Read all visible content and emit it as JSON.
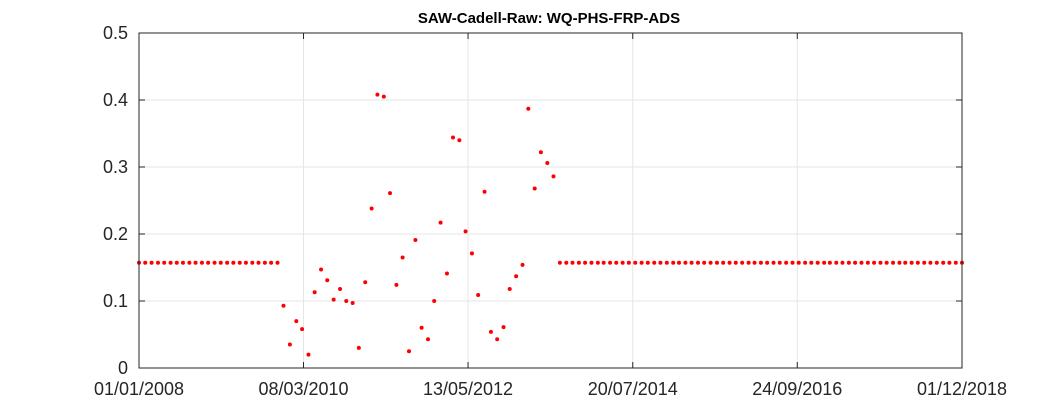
{
  "chart_data": {
    "type": "scatter",
    "title": "SAW-Cadell-Raw: WQ-PHS-FRP-ADS",
    "xlabel": "",
    "ylabel": "",
    "x_axis_type": "date",
    "xlim": [
      "2008-01-01",
      "2018-12-01"
    ],
    "ylim": [
      0,
      0.5
    ],
    "x_ticks": [
      "2008-01-01",
      "2010-03-08",
      "2012-05-13",
      "2014-07-20",
      "2016-09-24",
      "2018-12-01"
    ],
    "x_tick_labels": [
      "01/01/2008",
      "08/03/2010",
      "13/05/2012",
      "20/07/2014",
      "24/09/2016",
      "01/12/2018"
    ],
    "y_ticks": [
      0,
      0.1,
      0.2,
      0.3,
      0.4,
      0.5
    ],
    "y_tick_labels": [
      "0",
      "0.1",
      "0.2",
      "0.3",
      "0.4",
      "0.5"
    ],
    "grid": true,
    "legend": "none",
    "marker_color": "#ff0000",
    "series": [
      {
        "points": [
          {
            "x": "2008-01-01",
            "y": 0.157
          },
          {
            "x": "2008-01-31",
            "y": 0.157
          },
          {
            "x": "2008-03-02",
            "y": 0.157
          },
          {
            "x": "2008-04-02",
            "y": 0.157
          },
          {
            "x": "2008-05-02",
            "y": 0.157
          },
          {
            "x": "2008-06-02",
            "y": 0.157
          },
          {
            "x": "2008-07-02",
            "y": 0.157
          },
          {
            "x": "2008-08-01",
            "y": 0.157
          },
          {
            "x": "2008-09-01",
            "y": 0.157
          },
          {
            "x": "2008-10-01",
            "y": 0.157
          },
          {
            "x": "2008-11-01",
            "y": 0.157
          },
          {
            "x": "2008-12-01",
            "y": 0.157
          },
          {
            "x": "2009-01-01",
            "y": 0.157
          },
          {
            "x": "2009-01-31",
            "y": 0.157
          },
          {
            "x": "2009-03-03",
            "y": 0.157
          },
          {
            "x": "2009-04-02",
            "y": 0.157
          },
          {
            "x": "2009-05-03",
            "y": 0.157
          },
          {
            "x": "2009-06-02",
            "y": 0.157
          },
          {
            "x": "2009-07-03",
            "y": 0.157
          },
          {
            "x": "2009-08-02",
            "y": 0.157
          },
          {
            "x": "2009-09-02",
            "y": 0.157
          },
          {
            "x": "2009-10-02",
            "y": 0.157
          },
          {
            "x": "2009-11-02",
            "y": 0.157
          },
          {
            "x": "2009-12-01",
            "y": 0.093
          },
          {
            "x": "2010-01-01",
            "y": 0.035
          },
          {
            "x": "2010-02-01",
            "y": 0.07
          },
          {
            "x": "2010-03-01",
            "y": 0.058
          },
          {
            "x": "2010-04-01",
            "y": 0.02
          },
          {
            "x": "2010-05-01",
            "y": 0.113
          },
          {
            "x": "2010-06-01",
            "y": 0.147
          },
          {
            "x": "2010-07-01",
            "y": 0.131
          },
          {
            "x": "2010-08-01",
            "y": 0.102
          },
          {
            "x": "2010-09-01",
            "y": 0.118
          },
          {
            "x": "2010-10-01",
            "y": 0.1
          },
          {
            "x": "2010-11-01",
            "y": 0.097
          },
          {
            "x": "2010-12-01",
            "y": 0.03
          },
          {
            "x": "2011-01-01",
            "y": 0.128
          },
          {
            "x": "2011-02-01",
            "y": 0.238
          },
          {
            "x": "2011-03-01",
            "y": 0.408
          },
          {
            "x": "2011-04-01",
            "y": 0.405
          },
          {
            "x": "2011-05-01",
            "y": 0.261
          },
          {
            "x": "2011-06-01",
            "y": 0.124
          },
          {
            "x": "2011-07-01",
            "y": 0.165
          },
          {
            "x": "2011-08-01",
            "y": 0.025
          },
          {
            "x": "2011-09-01",
            "y": 0.191
          },
          {
            "x": "2011-10-01",
            "y": 0.06
          },
          {
            "x": "2011-11-01",
            "y": 0.043
          },
          {
            "x": "2011-12-01",
            "y": 0.1
          },
          {
            "x": "2012-01-01",
            "y": 0.217
          },
          {
            "x": "2012-02-01",
            "y": 0.141
          },
          {
            "x": "2012-03-01",
            "y": 0.344
          },
          {
            "x": "2012-04-01",
            "y": 0.34
          },
          {
            "x": "2012-05-01",
            "y": 0.204
          },
          {
            "x": "2012-06-01",
            "y": 0.171
          },
          {
            "x": "2012-07-01",
            "y": 0.109
          },
          {
            "x": "2012-08-01",
            "y": 0.263
          },
          {
            "x": "2012-09-01",
            "y": 0.054
          },
          {
            "x": "2012-10-01",
            "y": 0.043
          },
          {
            "x": "2012-11-01",
            "y": 0.061
          },
          {
            "x": "2012-12-01",
            "y": 0.118
          },
          {
            "x": "2013-01-01",
            "y": 0.137
          },
          {
            "x": "2013-02-01",
            "y": 0.154
          },
          {
            "x": "2013-03-01",
            "y": 0.387
          },
          {
            "x": "2013-04-01",
            "y": 0.268
          },
          {
            "x": "2013-05-01",
            "y": 0.322
          },
          {
            "x": "2013-06-01",
            "y": 0.306
          },
          {
            "x": "2013-07-01",
            "y": 0.286
          },
          {
            "x": "2013-08-01",
            "y": 0.157
          },
          {
            "x": "2013-09-01",
            "y": 0.157
          },
          {
            "x": "2013-10-01",
            "y": 0.157
          },
          {
            "x": "2013-11-01",
            "y": 0.157
          },
          {
            "x": "2013-12-01",
            "y": 0.157
          },
          {
            "x": "2014-01-01",
            "y": 0.157
          },
          {
            "x": "2014-02-01",
            "y": 0.157
          },
          {
            "x": "2014-03-01",
            "y": 0.157
          },
          {
            "x": "2014-04-01",
            "y": 0.157
          },
          {
            "x": "2014-05-01",
            "y": 0.157
          },
          {
            "x": "2014-06-01",
            "y": 0.157
          },
          {
            "x": "2014-07-01",
            "y": 0.157
          },
          {
            "x": "2014-08-01",
            "y": 0.157
          },
          {
            "x": "2014-09-01",
            "y": 0.157
          },
          {
            "x": "2014-10-01",
            "y": 0.157
          },
          {
            "x": "2014-11-01",
            "y": 0.157
          },
          {
            "x": "2014-12-01",
            "y": 0.157
          },
          {
            "x": "2015-01-01",
            "y": 0.157
          },
          {
            "x": "2015-02-01",
            "y": 0.157
          },
          {
            "x": "2015-03-01",
            "y": 0.157
          },
          {
            "x": "2015-04-01",
            "y": 0.157
          },
          {
            "x": "2015-05-01",
            "y": 0.157
          },
          {
            "x": "2015-06-01",
            "y": 0.157
          },
          {
            "x": "2015-07-01",
            "y": 0.157
          },
          {
            "x": "2015-08-01",
            "y": 0.157
          },
          {
            "x": "2015-09-01",
            "y": 0.157
          },
          {
            "x": "2015-10-01",
            "y": 0.157
          },
          {
            "x": "2015-11-01",
            "y": 0.157
          },
          {
            "x": "2015-12-01",
            "y": 0.157
          },
          {
            "x": "2016-01-01",
            "y": 0.157
          },
          {
            "x": "2016-02-01",
            "y": 0.157
          },
          {
            "x": "2016-03-01",
            "y": 0.157
          },
          {
            "x": "2016-04-01",
            "y": 0.157
          },
          {
            "x": "2016-05-01",
            "y": 0.157
          },
          {
            "x": "2016-06-01",
            "y": 0.157
          },
          {
            "x": "2016-07-01",
            "y": 0.157
          },
          {
            "x": "2016-08-01",
            "y": 0.157
          },
          {
            "x": "2016-09-01",
            "y": 0.157
          },
          {
            "x": "2016-10-01",
            "y": 0.157
          },
          {
            "x": "2016-11-01",
            "y": 0.157
          },
          {
            "x": "2016-12-01",
            "y": 0.157
          },
          {
            "x": "2017-01-01",
            "y": 0.157
          },
          {
            "x": "2017-02-01",
            "y": 0.157
          },
          {
            "x": "2017-03-01",
            "y": 0.157
          },
          {
            "x": "2017-04-01",
            "y": 0.157
          },
          {
            "x": "2017-05-01",
            "y": 0.157
          },
          {
            "x": "2017-06-01",
            "y": 0.157
          },
          {
            "x": "2017-07-01",
            "y": 0.157
          },
          {
            "x": "2017-08-01",
            "y": 0.157
          },
          {
            "x": "2017-09-01",
            "y": 0.157
          },
          {
            "x": "2017-10-01",
            "y": 0.157
          },
          {
            "x": "2017-11-01",
            "y": 0.157
          },
          {
            "x": "2017-12-01",
            "y": 0.157
          },
          {
            "x": "2018-01-01",
            "y": 0.157
          },
          {
            "x": "2018-02-01",
            "y": 0.157
          },
          {
            "x": "2018-03-01",
            "y": 0.157
          },
          {
            "x": "2018-04-01",
            "y": 0.157
          },
          {
            "x": "2018-05-01",
            "y": 0.157
          },
          {
            "x": "2018-06-01",
            "y": 0.157
          },
          {
            "x": "2018-07-01",
            "y": 0.157
          },
          {
            "x": "2018-08-01",
            "y": 0.157
          },
          {
            "x": "2018-09-01",
            "y": 0.157
          },
          {
            "x": "2018-10-01",
            "y": 0.157
          },
          {
            "x": "2018-11-01",
            "y": 0.157
          },
          {
            "x": "2018-12-01",
            "y": 0.157
          }
        ]
      }
    ]
  }
}
